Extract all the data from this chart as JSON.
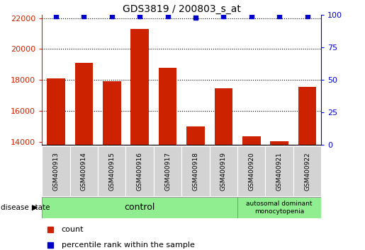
{
  "title": "GDS3819 / 200803_s_at",
  "samples": [
    "GSM400913",
    "GSM400914",
    "GSM400915",
    "GSM400916",
    "GSM400917",
    "GSM400918",
    "GSM400919",
    "GSM400920",
    "GSM400921",
    "GSM400922"
  ],
  "counts": [
    18100,
    19100,
    17900,
    21300,
    18800,
    15000,
    17450,
    14350,
    14050,
    17550
  ],
  "percentiles": [
    99,
    99,
    99,
    99,
    99,
    98,
    99,
    99,
    99,
    99
  ],
  "bar_color": "#cc2200",
  "dot_color": "#0000cc",
  "ylim_left": [
    13800,
    22200
  ],
  "ylim_right": [
    0,
    100
  ],
  "yticks_left": [
    14000,
    16000,
    18000,
    20000,
    22000
  ],
  "yticks_right": [
    0,
    25,
    50,
    75,
    100
  ],
  "grid_values": [
    16000,
    18000,
    20000,
    22000
  ],
  "control_samples": 7,
  "disease_samples": 3,
  "control_label": "control",
  "disease_label": "autosomal dominant\nmonocytopenia",
  "disease_state_label": "disease state",
  "legend_count_label": "count",
  "legend_percentile_label": "percentile rank within the sample",
  "bar_width": 0.65,
  "percentile_yval": 99,
  "percentile_yval_low": 98,
  "low_percentile_idx": 5
}
